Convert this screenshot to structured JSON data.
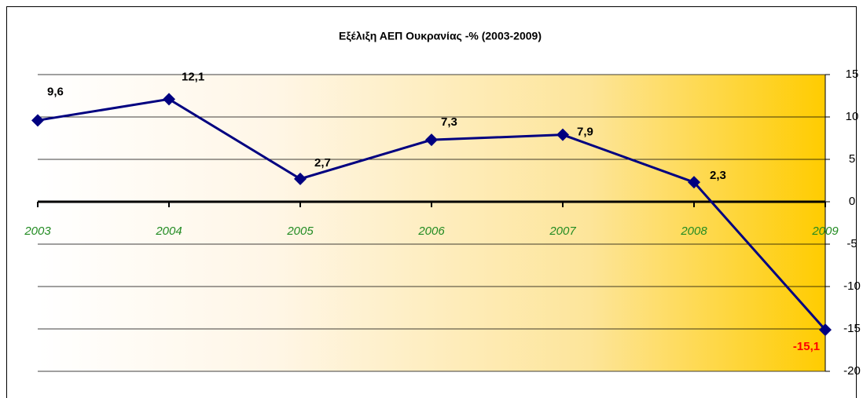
{
  "chart_data": {
    "type": "line",
    "title": "Εξέλιξη ΑΕΠ Ουκρανίας -% (2003-2009)",
    "categories": [
      "2003",
      "2004",
      "2005",
      "2006",
      "2007",
      "2008",
      "2009"
    ],
    "series": [
      {
        "name": "ΑΕΠ",
        "color": "#000080",
        "values": [
          9.6,
          12.1,
          2.7,
          7.3,
          7.9,
          2.3,
          -15.1
        ],
        "value_labels": [
          "9,6",
          "12,1",
          "2,7",
          "7,3",
          "7,9",
          "2,3",
          "-15,1"
        ]
      }
    ],
    "ylim": [
      -20,
      15
    ],
    "yticks": [
      -20,
      -15,
      -10,
      -5,
      0,
      5,
      10,
      15
    ],
    "grid": true,
    "category_label_color": "#228b22",
    "negative_label_color": "#ff0000"
  }
}
